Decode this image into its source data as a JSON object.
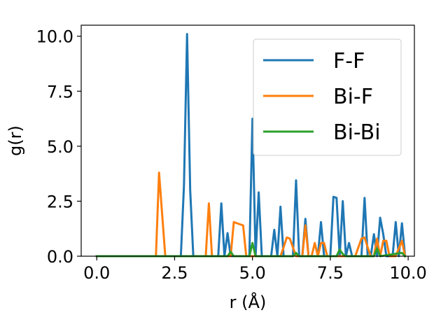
{
  "chart_data": {
    "type": "line",
    "title": "",
    "xlabel": "r (Å)",
    "ylabel": "g(r)",
    "xlim": [
      -0.5,
      10.2
    ],
    "ylim": [
      0,
      10.5
    ],
    "xticks": [
      0.0,
      2.5,
      5.0,
      7.5,
      10.0
    ],
    "xtick_labels": [
      "0.0",
      "2.5",
      "5.0",
      "7.5",
      "10.0"
    ],
    "yticks": [
      0.0,
      2.5,
      5.0,
      7.5,
      10.0
    ],
    "ytick_labels": [
      "0.0",
      "2.5",
      "5.0",
      "7.5",
      "10.0"
    ],
    "grid": false,
    "legend_position": "upper-right",
    "series": [
      {
        "name": "F-F",
        "color": "#1f77b4",
        "x": [
          0.0,
          2.7,
          2.8,
          2.9,
          3.0,
          3.1,
          3.9,
          4.0,
          4.1,
          4.2,
          4.3,
          4.4,
          4.9,
          5.0,
          5.1,
          5.2,
          5.3,
          5.6,
          5.7,
          5.8,
          5.9,
          6.0,
          6.3,
          6.4,
          6.5,
          6.6,
          6.7,
          6.8,
          7.1,
          7.2,
          7.3,
          7.5,
          7.6,
          7.7,
          7.8,
          7.9,
          8.0,
          8.1,
          8.2,
          8.5,
          8.6,
          8.7,
          8.8,
          8.9,
          9.0,
          9.1,
          9.2,
          9.3,
          9.5,
          9.6,
          9.7,
          9.8,
          9.9
        ],
        "y": [
          0.0,
          0.0,
          3.2,
          10.1,
          3.0,
          0.0,
          0.0,
          2.4,
          0.0,
          1.05,
          0.0,
          0.0,
          0.0,
          6.25,
          0.0,
          2.9,
          0.0,
          0.0,
          1.2,
          0.0,
          2.25,
          0.0,
          0.0,
          3.45,
          0.0,
          0.0,
          1.7,
          0.0,
          0.0,
          1.55,
          0.0,
          0.0,
          2.7,
          2.65,
          0.0,
          2.5,
          0.0,
          0.6,
          0.0,
          0.0,
          2.65,
          0.0,
          0.0,
          1.0,
          0.0,
          1.75,
          1.0,
          0.0,
          0.0,
          1.55,
          0.0,
          1.5,
          0.0
        ]
      },
      {
        "name": "Bi-F",
        "color": "#ff7f0e",
        "x": [
          0.0,
          1.9,
          2.0,
          2.1,
          2.2,
          3.5,
          3.6,
          3.7,
          4.3,
          4.4,
          4.5,
          4.7,
          4.8,
          5.9,
          6.0,
          6.1,
          6.2,
          6.4,
          6.5,
          6.6,
          6.7,
          6.8,
          6.9,
          7.0,
          7.1,
          7.2,
          7.3,
          7.4,
          7.5,
          8.3,
          8.5,
          8.6,
          8.7,
          8.8,
          8.9,
          9.0,
          9.1,
          9.2,
          9.3,
          9.4,
          9.5,
          9.6,
          9.8,
          9.9
        ],
        "y": [
          0.0,
          0.0,
          3.8,
          1.9,
          0.0,
          0.0,
          2.4,
          0.0,
          0.0,
          1.55,
          1.5,
          1.4,
          0.0,
          0.0,
          0.4,
          0.85,
          0.8,
          0.0,
          0.0,
          0.0,
          1.4,
          0.0,
          0.0,
          0.6,
          0.0,
          0.6,
          0.6,
          0.0,
          0.0,
          0.0,
          0.8,
          0.85,
          0.4,
          0.0,
          0.0,
          0.8,
          0.0,
          0.7,
          0.7,
          0.0,
          0.0,
          0.0,
          0.7,
          0.0
        ]
      },
      {
        "name": "Bi-Bi",
        "color": "#2ca02c",
        "x": [
          0.0,
          4.2,
          4.3,
          4.4,
          4.9,
          5.0,
          5.1,
          6.3,
          6.4,
          6.5,
          7.7,
          7.8,
          7.9,
          8.0,
          8.9,
          9.0,
          9.1,
          9.8,
          9.9
        ],
        "y": [
          0.0,
          0.0,
          0.2,
          0.0,
          0.0,
          0.6,
          0.0,
          0.0,
          0.15,
          0.0,
          0.0,
          0.3,
          0.1,
          0.0,
          0.0,
          0.35,
          0.0,
          0.15,
          0.0
        ]
      }
    ]
  }
}
